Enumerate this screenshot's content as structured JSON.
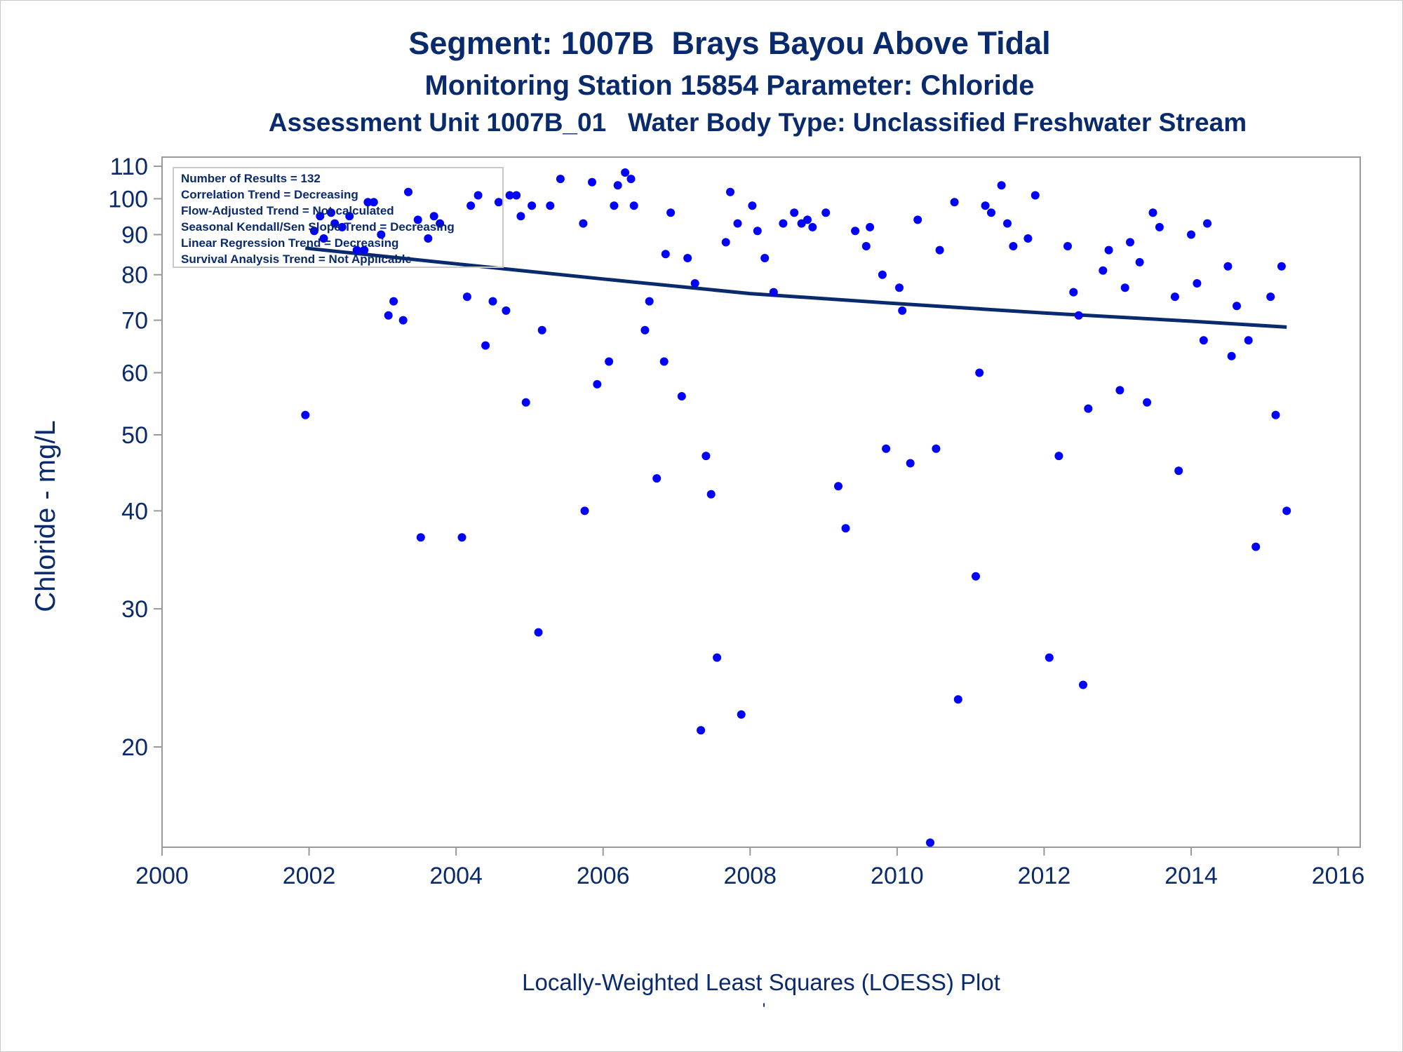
{
  "titles": {
    "line1": "Segment: 1007B  Brays Bayou Above Tidal",
    "line2": "Monitoring Station 15854 Parameter: Chloride",
    "line3": "Assessment Unit 1007B_01   Water Body Type: Unclassified Freshwater Stream"
  },
  "stats_box": [
    "Number of Results = 132",
    "Correlation Trend = Decreasing",
    "Flow-Adjusted Trend = Not calculated",
    "Seasonal Kendall/Sen Slope Trend = Decreasing",
    "Linear Regression Trend = Decreasing",
    "Survival Analysis Trend = Not Applicable"
  ],
  "footer": {
    "caption": "Locally-Weighted Least Squares (LOESS) Plot",
    "mark": "'"
  },
  "colors": {
    "text": "#0a2a6e",
    "points": "#0000ff",
    "trend_line": "#0a2a6e",
    "axis": "#999999"
  },
  "chart_data": {
    "type": "scatter",
    "ylabel": "Chloride - mg/L",
    "xlabel": "",
    "x_ticks": [
      "2000",
      "2002",
      "2004",
      "2006",
      "2008",
      "2010",
      "2012",
      "2014",
      "2016"
    ],
    "y_ticks": [
      "20",
      "30",
      "40",
      "50",
      "60",
      "70",
      "80",
      "90",
      "100",
      "110"
    ],
    "xlim": [
      2000,
      2016.3
    ],
    "ylim": [
      14.9,
      113
    ],
    "y_scale": "log",
    "grid": false,
    "series": [
      {
        "values_xy": [
          [
            2001.95,
            53
          ],
          [
            2002.07,
            91
          ],
          [
            2002.15,
            95
          ],
          [
            2002.2,
            89
          ],
          [
            2002.3,
            96
          ],
          [
            2002.35,
            93
          ],
          [
            2002.45,
            92
          ],
          [
            2002.55,
            95
          ],
          [
            2002.65,
            86
          ],
          [
            2002.75,
            86
          ],
          [
            2002.8,
            99
          ],
          [
            2002.88,
            99
          ],
          [
            2002.98,
            90
          ],
          [
            2003.08,
            71
          ],
          [
            2003.15,
            74
          ],
          [
            2003.28,
            70
          ],
          [
            2003.35,
            102
          ],
          [
            2003.48,
            94
          ],
          [
            2003.52,
            37
          ],
          [
            2003.62,
            89
          ],
          [
            2003.7,
            95
          ],
          [
            2003.78,
            93
          ],
          [
            2004.08,
            37
          ],
          [
            2004.15,
            75
          ],
          [
            2004.2,
            98
          ],
          [
            2004.3,
            101
          ],
          [
            2004.4,
            65
          ],
          [
            2004.5,
            74
          ],
          [
            2004.58,
            99
          ],
          [
            2004.68,
            72
          ],
          [
            2004.73,
            101
          ],
          [
            2004.82,
            101
          ],
          [
            2004.88,
            95
          ],
          [
            2004.95,
            55
          ],
          [
            2005.03,
            98
          ],
          [
            2005.12,
            28
          ],
          [
            2005.17,
            68
          ],
          [
            2005.28,
            98
          ],
          [
            2005.42,
            106
          ],
          [
            2005.73,
            93
          ],
          [
            2005.75,
            40
          ],
          [
            2005.85,
            105
          ],
          [
            2005.92,
            58
          ],
          [
            2006.08,
            62
          ],
          [
            2006.15,
            98
          ],
          [
            2006.2,
            104
          ],
          [
            2006.3,
            108
          ],
          [
            2006.38,
            106
          ],
          [
            2006.42,
            98
          ],
          [
            2006.57,
            68
          ],
          [
            2006.63,
            74
          ],
          [
            2006.73,
            44
          ],
          [
            2006.83,
            62
          ],
          [
            2006.85,
            85
          ],
          [
            2006.92,
            96
          ],
          [
            2007.07,
            56
          ],
          [
            2007.15,
            84
          ],
          [
            2007.25,
            78
          ],
          [
            2007.33,
            21
          ],
          [
            2007.4,
            47
          ],
          [
            2007.47,
            42
          ],
          [
            2007.55,
            26
          ],
          [
            2007.67,
            88
          ],
          [
            2007.73,
            102
          ],
          [
            2007.83,
            93
          ],
          [
            2007.88,
            22
          ],
          [
            2008.03,
            98
          ],
          [
            2008.1,
            91
          ],
          [
            2008.2,
            84
          ],
          [
            2008.32,
            76
          ],
          [
            2008.45,
            93
          ],
          [
            2008.6,
            96
          ],
          [
            2008.7,
            93
          ],
          [
            2008.78,
            94
          ],
          [
            2008.85,
            92
          ],
          [
            2009.03,
            96
          ],
          [
            2009.2,
            43
          ],
          [
            2009.3,
            38
          ],
          [
            2009.43,
            91
          ],
          [
            2009.58,
            87
          ],
          [
            2009.63,
            92
          ],
          [
            2009.8,
            80
          ],
          [
            2009.85,
            48
          ],
          [
            2010.03,
            77
          ],
          [
            2010.07,
            72
          ],
          [
            2010.18,
            46
          ],
          [
            2010.28,
            94
          ],
          [
            2010.45,
            15.1
          ],
          [
            2010.53,
            48
          ],
          [
            2010.58,
            86
          ],
          [
            2010.78,
            99
          ],
          [
            2010.83,
            23
          ],
          [
            2011.07,
            33
          ],
          [
            2011.12,
            60
          ],
          [
            2011.2,
            98
          ],
          [
            2011.28,
            96
          ],
          [
            2011.42,
            104
          ],
          [
            2011.5,
            93
          ],
          [
            2011.58,
            87
          ],
          [
            2011.78,
            89
          ],
          [
            2011.88,
            101
          ],
          [
            2012.07,
            26
          ],
          [
            2012.2,
            47
          ],
          [
            2012.32,
            87
          ],
          [
            2012.4,
            76
          ],
          [
            2012.47,
            71
          ],
          [
            2012.53,
            24
          ],
          [
            2012.6,
            54
          ],
          [
            2012.8,
            81
          ],
          [
            2012.88,
            86
          ],
          [
            2013.03,
            57
          ],
          [
            2013.1,
            77
          ],
          [
            2013.17,
            88
          ],
          [
            2013.3,
            83
          ],
          [
            2013.4,
            55
          ],
          [
            2013.48,
            96
          ],
          [
            2013.57,
            92
          ],
          [
            2013.78,
            75
          ],
          [
            2013.83,
            45
          ],
          [
            2014.0,
            90
          ],
          [
            2014.08,
            78
          ],
          [
            2014.17,
            66
          ],
          [
            2014.22,
            93
          ],
          [
            2014.5,
            82
          ],
          [
            2014.55,
            63
          ],
          [
            2014.62,
            73
          ],
          [
            2014.78,
            66
          ],
          [
            2014.88,
            36
          ],
          [
            2015.08,
            75
          ],
          [
            2015.15,
            53
          ],
          [
            2015.23,
            82
          ],
          [
            2015.3,
            40
          ]
        ]
      },
      {
        "type": "line",
        "values_xy": [
          [
            2001.95,
            86.5
          ],
          [
            2004.0,
            82.6
          ],
          [
            2006.0,
            79.0
          ],
          [
            2008.0,
            75.7
          ],
          [
            2010.0,
            73.5
          ],
          [
            2012.0,
            71.5
          ],
          [
            2014.0,
            69.8
          ],
          [
            2015.3,
            68.6
          ]
        ]
      }
    ]
  }
}
